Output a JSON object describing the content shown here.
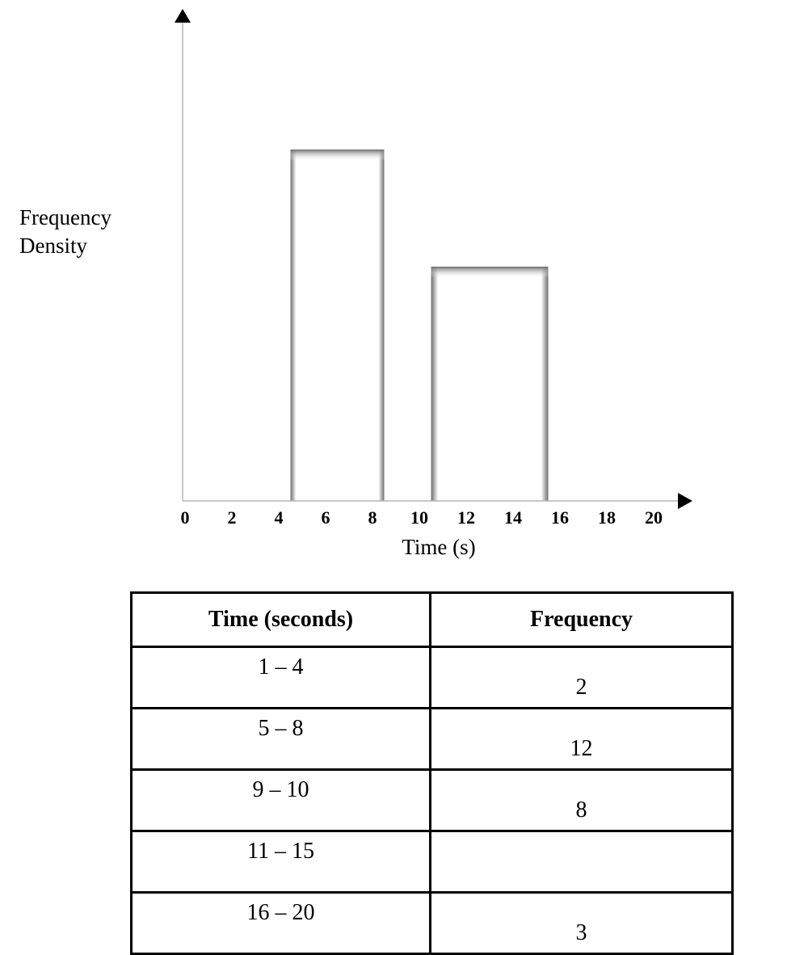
{
  "chart_data": {
    "type": "bar",
    "histogram": true,
    "xlabel": "Time (s)",
    "ylabel_lines": [
      "Frequency",
      "Density"
    ],
    "xlim": [
      0,
      20
    ],
    "x_ticks": [
      "0",
      "2",
      "4",
      "6",
      "8",
      "10",
      "12",
      "14",
      "16",
      "18",
      "20"
    ],
    "ylim": [
      0,
      4
    ],
    "grid": false,
    "bars": [
      {
        "x_start": 4.5,
        "x_end": 8.5,
        "value": 3
      },
      {
        "x_start": 10.5,
        "x_end": 15.5,
        "value": 2
      }
    ]
  },
  "table": {
    "headers": [
      "Time (seconds)",
      "Frequency"
    ],
    "rows": [
      {
        "time": "1 – 4",
        "frequency": "2"
      },
      {
        "time": "5 – 8",
        "frequency": "12"
      },
      {
        "time": "9 – 10",
        "frequency": "8"
      },
      {
        "time": "11 – 15",
        "frequency": ""
      },
      {
        "time": "16 – 20",
        "frequency": "3"
      }
    ]
  }
}
